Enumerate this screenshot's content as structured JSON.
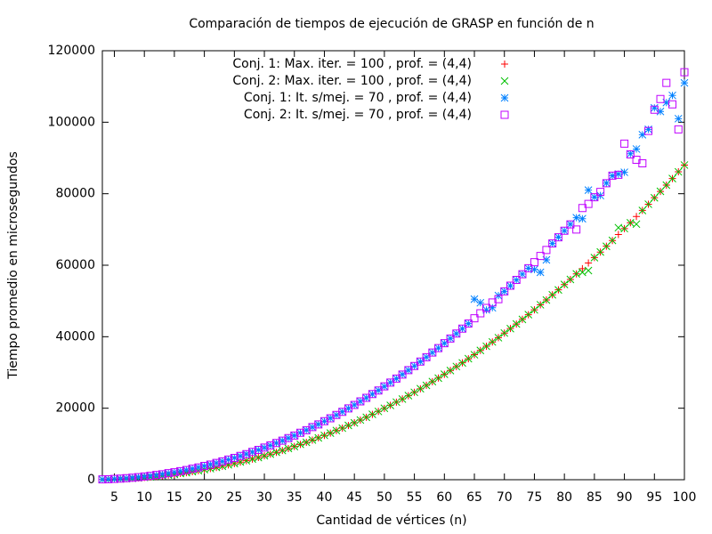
{
  "chart_data": {
    "type": "scatter",
    "title": "Comparación de tiempos de ejecución de GRASP en función de n",
    "xlabel": "Cantidad de vértices (n)",
    "ylabel": "Tiempo promedio en microsegundos",
    "xlim": [
      3,
      100
    ],
    "ylim": [
      0,
      120000
    ],
    "xticks": [
      5,
      10,
      15,
      20,
      25,
      30,
      35,
      40,
      45,
      50,
      55,
      60,
      65,
      70,
      75,
      80,
      85,
      90,
      95,
      100
    ],
    "yticks": [
      0,
      20000,
      40000,
      60000,
      80000,
      100000,
      120000
    ],
    "legend": "top-right",
    "x": [
      3,
      4,
      5,
      6,
      7,
      8,
      9,
      10,
      11,
      12,
      13,
      14,
      15,
      16,
      17,
      18,
      19,
      20,
      21,
      22,
      23,
      24,
      25,
      26,
      27,
      28,
      29,
      30,
      31,
      32,
      33,
      34,
      35,
      36,
      37,
      38,
      39,
      40,
      41,
      42,
      43,
      44,
      45,
      46,
      47,
      48,
      49,
      50,
      51,
      52,
      53,
      54,
      55,
      56,
      57,
      58,
      59,
      60,
      61,
      62,
      63,
      64,
      65,
      66,
      67,
      68,
      69,
      70,
      71,
      72,
      73,
      74,
      75,
      76,
      77,
      78,
      79,
      80,
      81,
      82,
      83,
      84,
      85,
      86,
      87,
      88,
      89,
      90,
      91,
      92,
      93,
      94,
      95,
      96,
      97,
      98,
      99,
      100
    ],
    "series": [
      {
        "name": "Conj. 1: Max. iter. = 100 , prof. = (4,4)",
        "color": "#ff0000",
        "marker": "plus",
        "values": [
          48,
          89,
          145,
          213,
          295,
          393,
          506,
          637,
          779,
          936,
          1110,
          1300,
          1507,
          1731,
          1973,
          2232,
          2512,
          2808,
          3113,
          3437,
          3779,
          4137,
          4516,
          4913,
          5327,
          5760,
          6214,
          6687,
          7169,
          7670,
          8189,
          8728,
          9292,
          9870,
          10470,
          11090,
          11730,
          12380,
          13050,
          13740,
          14440,
          15170,
          15920,
          16680,
          17470,
          18270,
          19110,
          19950,
          20810,
          21690,
          22590,
          23500,
          24470,
          25430,
          26410,
          27420,
          28440,
          29480,
          30550,
          31640,
          32700,
          33830,
          34980,
          36150,
          37350,
          38520,
          39750,
          41010,
          42290,
          43550,
          44870,
          46160,
          47530,
          48920,
          50280,
          51710,
          53110,
          54590,
          56030,
          57560,
          59040,
          60610,
          62140,
          63680,
          65320,
          66910,
          68600,
          70230,
          71880,
          73640,
          75330,
          77050,
          78880,
          80640,
          82420,
          84230,
          86150,
          88000
        ]
      },
      {
        "name": "Conj. 2: Max. iter. = 100 , prof. = (4,4)",
        "color": "#00c000",
        "marker": "cross",
        "values": [
          50,
          92,
          150,
          210,
          300,
          390,
          510,
          640,
          770,
          940,
          1100,
          1310,
          1500,
          1740,
          1960,
          2240,
          2500,
          2820,
          3100,
          3450,
          3770,
          4150,
          4500,
          4930,
          5310,
          5780,
          6200,
          6700,
          7150,
          7690,
          8170,
          8750,
          9270,
          9890,
          10450,
          11110,
          11710,
          12400,
          13030,
          13760,
          14420,
          15190,
          15900,
          16700,
          17450,
          18290,
          19090,
          19970,
          20790,
          21710,
          22570,
          23520,
          24450,
          25450,
          26390,
          27440,
          28420,
          29500,
          30530,
          31660,
          32680,
          33850,
          34960,
          36170,
          37330,
          38540,
          39730,
          41030,
          42270,
          43570,
          44850,
          46180,
          47510,
          48940,
          50260,
          51730,
          53090,
          54610,
          56010,
          57580,
          58000,
          58500,
          62120,
          63700,
          65300,
          66930,
          70500,
          70250,
          71860,
          71500,
          75310,
          77070,
          78860,
          80660,
          82400,
          84250,
          86130,
          88020
        ]
      },
      {
        "name": "Conj. 1: It. s/mej. = 70  , prof. = (4,4)",
        "color": "#0080ff",
        "marker": "star",
        "values": [
          73,
          132,
          209,
          306,
          422,
          561,
          720,
          902,
          1099,
          1316,
          1555,
          1815,
          2097,
          2399,
          2725,
          3075,
          3448,
          3844,
          4256,
          4685,
          5142,
          5616,
          6119,
          6638,
          7188,
          7754,
          8351,
          8964,
          9600,
          10250,
          10930,
          11630,
          12360,
          13120,
          13880,
          14690,
          15500,
          16350,
          17210,
          18100,
          19010,
          19940,
          20920,
          21900,
          22910,
          23940,
          24990,
          26080,
          27180,
          28280,
          29440,
          30620,
          31820,
          33020,
          34280,
          35560,
          36830,
          38160,
          39520,
          40860,
          42270,
          43660,
          50500,
          49500,
          47500,
          48100,
          51500,
          52680,
          54240,
          55880,
          57500,
          59140,
          58800,
          58000,
          61500,
          66070,
          67840,
          69630,
          71450,
          73290,
          73000,
          81000,
          79040,
          79500,
          82960,
          85030,
          85500,
          86000,
          91170,
          92500,
          96500,
          98000,
          104000,
          103000,
          105500,
          107500,
          101000,
          111000
        ]
      },
      {
        "name": "Conj. 2: It. s/mej. = 70  , prof. = (4,4)",
        "color": "#c000ff",
        "marker": "square",
        "values": [
          80,
          140,
          220,
          300,
          430,
          550,
          730,
          910,
          1090,
          1330,
          1540,
          1830,
          2080,
          2410,
          2710,
          3090,
          3430,
          3860,
          4240,
          4700,
          5130,
          5630,
          6100,
          6650,
          7170,
          7770,
          8330,
          8980,
          9580,
          10270,
          10910,
          11650,
          12340,
          13140,
          13860,
          14710,
          15480,
          16370,
          17190,
          18120,
          18990,
          19960,
          20900,
          21920,
          22890,
          23960,
          24970,
          26100,
          27160,
          28300,
          29420,
          30640,
          31800,
          33040,
          34260,
          35580,
          36810,
          38180,
          39500,
          40880,
          42250,
          43680,
          45150,
          46550,
          48060,
          49590,
          50500,
          52700,
          54260,
          55900,
          57480,
          59160,
          60840,
          62570,
          64250,
          66090,
          67820,
          69650,
          71430,
          70000,
          76000,
          77140,
          79020,
          80500,
          82940,
          85050,
          85300,
          94000,
          91000,
          89500,
          88500,
          97570,
          103500,
          106500,
          111000,
          105000,
          98000,
          114000
        ]
      }
    ]
  }
}
